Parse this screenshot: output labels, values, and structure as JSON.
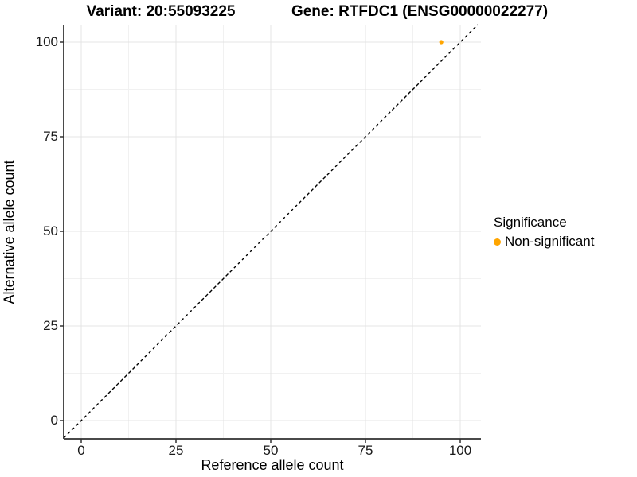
{
  "titles": {
    "variant": "Variant: 20:55093225",
    "gene": "Gene: RTFDC1 (ENSG00000022277)"
  },
  "legend": {
    "title": "Significance",
    "items": [
      {
        "label": "Non-significant",
        "color": "#FFA500",
        "marker": "circle-icon"
      }
    ]
  },
  "chart_data": {
    "type": "scatter",
    "title": "Variant: 20:55093225   Gene: RTFDC1 (ENSG00000022277)",
    "xlabel": "Reference allele count",
    "ylabel": "Alternative allele count",
    "xlim": [
      -5,
      105
    ],
    "ylim": [
      -5,
      105
    ],
    "x_ticks": [
      0,
      25,
      50,
      75,
      100
    ],
    "y_ticks": [
      0,
      25,
      50,
      75,
      100
    ],
    "grid": true,
    "legend_position": "right",
    "series": [
      {
        "name": "Non-significant",
        "color": "#FFA500",
        "points": [
          {
            "x": 95,
            "y": 100
          }
        ]
      }
    ],
    "reference_line": {
      "type": "abline",
      "slope": 1,
      "intercept": 0,
      "style": "dashed",
      "color": "#000000"
    }
  },
  "colors": {
    "point": "#FFA500",
    "grid_major": "#E4E4E4",
    "grid_minor": "#F1F1F1",
    "axis_line": "#4a4a4a",
    "tick_mark": "#333333"
  }
}
